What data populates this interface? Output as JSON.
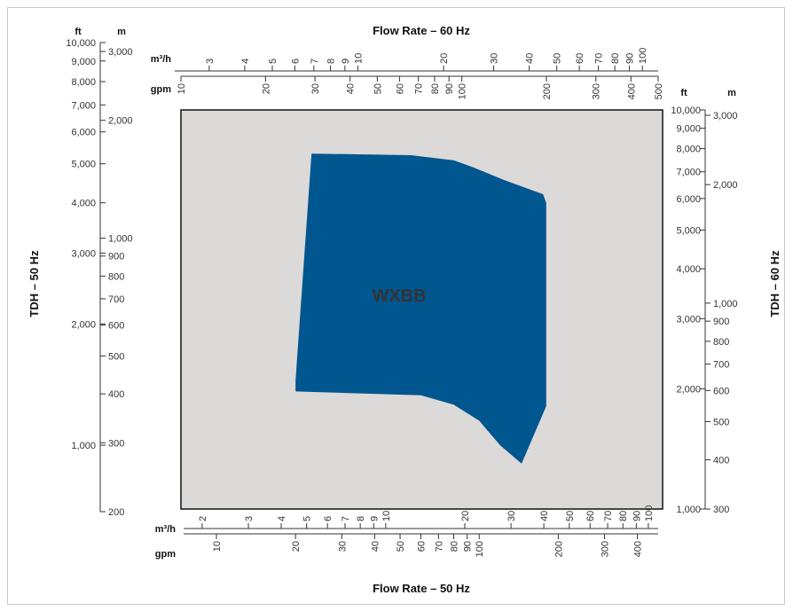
{
  "chart_data": {
    "type": "area",
    "region_label": "WXBB",
    "colors": {
      "plot_bg": "#dcd9d9",
      "region": "#00568f",
      "axis": "#333333",
      "region_label": "#ffffff"
    },
    "titles": {
      "top": "Flow Rate – 60 Hz",
      "bottom": "Flow Rate – 50 Hz",
      "left": "TDH – 50 Hz",
      "right": "TDH – 60 Hz"
    },
    "units": {
      "top_m3h": "m³/h",
      "top_gpm": "gpm",
      "bottom_m3h": "m³/h",
      "bottom_gpm": "gpm",
      "left_ft": "ft",
      "left_m": "m",
      "right_ft": "ft",
      "right_m": "m"
    },
    "ticks": {
      "top_m3h": [
        "3",
        "4",
        "5",
        "6",
        "7",
        "8",
        "9",
        "10",
        "20",
        "30",
        "40",
        "50",
        "60",
        "70",
        "80",
        "90",
        "100"
      ],
      "top_gpm": [
        "10",
        "20",
        "30",
        "40",
        "50",
        "60",
        "70",
        "80",
        "90",
        "100",
        "200",
        "300",
        "400",
        "500"
      ],
      "bottom_m3h": [
        "2",
        "3",
        "4",
        "5",
        "6",
        "7",
        "8",
        "9",
        "10",
        "20",
        "30",
        "40",
        "50",
        "60",
        "70",
        "80",
        "90",
        "100"
      ],
      "bottom_gpm": [
        "10",
        "20",
        "30",
        "40",
        "50",
        "60",
        "70",
        "80",
        "90",
        "100",
        "200",
        "300",
        "400"
      ],
      "left_ft": [
        "10,000",
        "9,000",
        "8,000",
        "7,000",
        "6,000",
        "5,000",
        "4,000",
        "3,000",
        "2,000",
        "1,000"
      ],
      "left_m": [
        "3,000",
        "2,000",
        "1,000",
        "900",
        "800",
        "700",
        "600",
        "500",
        "400",
        "300",
        "200"
      ],
      "right_ft": [
        "10,000",
        "9,000",
        "8,000",
        "7,000",
        "6,000",
        "5,000",
        "4,000",
        "3,000",
        "2,000",
        "1,000"
      ],
      "right_m": [
        "3,000",
        "2,000",
        "1,000",
        "900",
        "800",
        "700",
        "600",
        "500",
        "400",
        "300"
      ]
    },
    "axes": {
      "x_bottom_gpm_range": [
        7.5,
        480
      ],
      "x_top_gpm_range": [
        10,
        500
      ],
      "y_left_ft_range": [
        700,
        7000
      ],
      "y_right_ft_range": [
        1000,
        10000
      ],
      "x_scale": "log",
      "y_scale": "log"
    },
    "region_outline_50hz": {
      "x_gpm": [
        20,
        20,
        23,
        55,
        80,
        95,
        125,
        175,
        180,
        180,
        145,
        120,
        100,
        80,
        60,
        20
      ],
      "y_ft": [
        2900,
        1450,
        5300,
        5250,
        5100,
        4900,
        4550,
        4200,
        4000,
        1250,
        900,
        1000,
        1150,
        1260,
        1330,
        1360
      ]
    }
  }
}
